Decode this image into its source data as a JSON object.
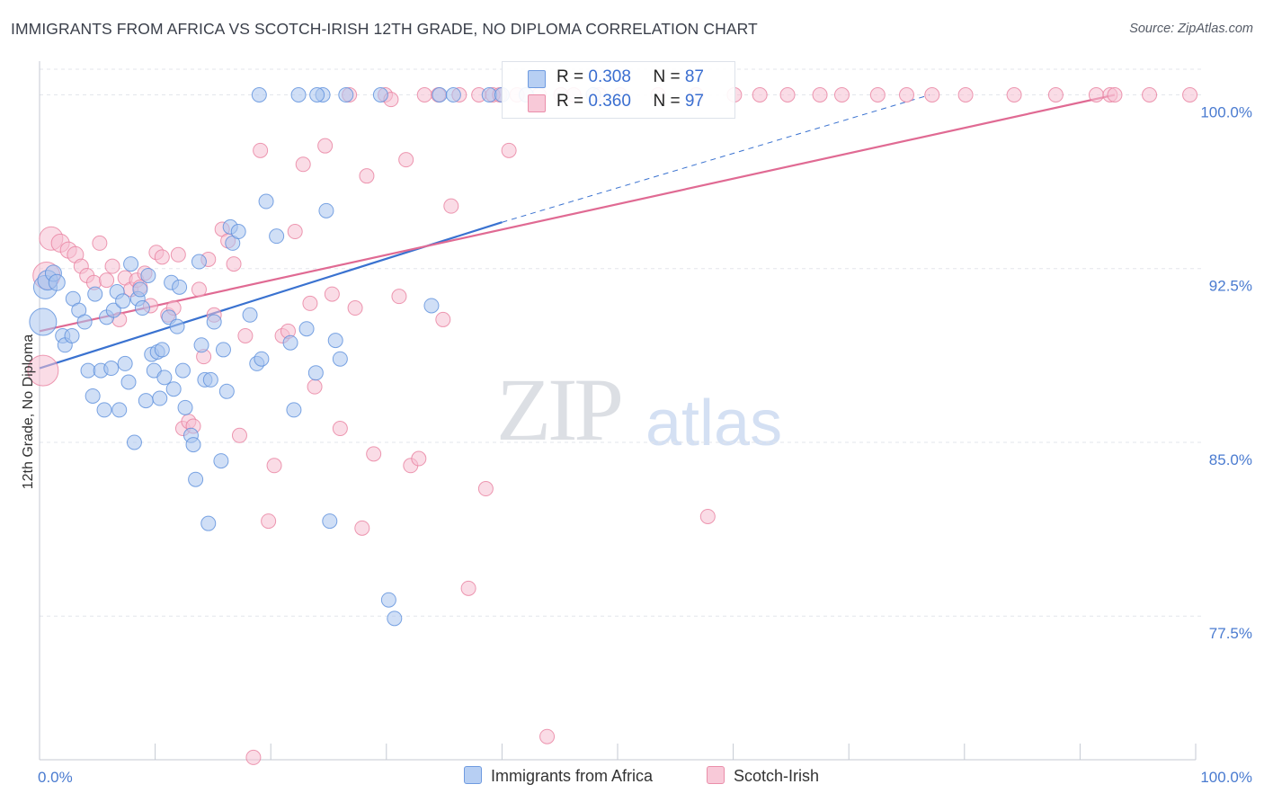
{
  "title": "IMMIGRANTS FROM AFRICA VS SCOTCH-IRISH 12TH GRADE, NO DIPLOMA CORRELATION CHART",
  "source": "Source: ZipAtlas.com",
  "watermark": {
    "zip": "ZIP",
    "atlas": "atlas"
  },
  "legend": {
    "series1": {
      "r_label": "R = ",
      "r_value": "0.308",
      "n_label": "N = ",
      "n_value": "87"
    },
    "series2": {
      "r_label": "R = ",
      "r_value": "0.360",
      "n_label": "N = ",
      "n_value": "97"
    }
  },
  "bottom_legend": {
    "series1": "Immigrants from Africa",
    "series2": "Scotch-Irish"
  },
  "colors": {
    "series1_fill": "#a9c4ee",
    "series1_stroke": "#5b8fdc",
    "series1_line": "#3a72d0",
    "series2_fill": "#f6bfd1",
    "series2_stroke": "#e8809f",
    "series2_line": "#e06a93",
    "grid": "#e3e6eb",
    "axis": "#c5cad3"
  },
  "chart_data": {
    "type": "scatter",
    "title": "IMMIGRANTS FROM AFRICA VS SCOTCH-IRISH 12TH GRADE, NO DIPLOMA CORRELATION CHART",
    "xlabel": "",
    "ylabel": "12th Grade, No Diploma",
    "xlim": [
      0,
      100
    ],
    "ylim": [
      71.3,
      101.3
    ],
    "x_ticks": [
      "0.0%",
      "100.0%"
    ],
    "y_ticks": [
      {
        "value": 77.5,
        "label": "77.5%"
      },
      {
        "value": 85.0,
        "label": "85.0%"
      },
      {
        "value": 92.5,
        "label": "92.5%"
      },
      {
        "value": 100.0,
        "label": "100.0%"
      }
    ],
    "grid": true,
    "legend_position": "top-center",
    "series": [
      {
        "name": "Immigrants from Africa",
        "r": 0.308,
        "n": 87,
        "trend": {
          "x0": 0,
          "y0": 88.2,
          "x1": 40,
          "y1": 94.5,
          "dashed_to_x": 77,
          "dashed_to_y": 100.0
        },
        "points": [
          [
            0.3,
            90.2,
            14
          ],
          [
            0.5,
            91.7,
            12
          ],
          [
            0.7,
            92.0,
            10
          ],
          [
            1.2,
            92.3,
            8
          ],
          [
            1.5,
            91.9,
            8
          ],
          [
            2.0,
            89.6,
            7
          ],
          [
            2.2,
            89.2,
            7
          ],
          [
            2.8,
            89.6,
            7
          ],
          [
            2.9,
            91.2,
            7
          ],
          [
            3.4,
            90.7,
            7
          ],
          [
            3.9,
            90.2,
            7
          ],
          [
            4.2,
            88.1,
            7
          ],
          [
            4.6,
            87.0,
            7
          ],
          [
            4.8,
            91.4,
            7
          ],
          [
            5.3,
            88.1,
            7
          ],
          [
            5.6,
            86.4,
            7
          ],
          [
            5.8,
            90.4,
            7
          ],
          [
            6.2,
            88.2,
            7
          ],
          [
            6.4,
            90.7,
            7
          ],
          [
            6.7,
            91.5,
            7
          ],
          [
            6.9,
            86.4,
            7
          ],
          [
            7.2,
            91.1,
            7
          ],
          [
            7.4,
            88.4,
            7
          ],
          [
            7.7,
            87.6,
            7
          ],
          [
            7.9,
            92.7,
            7
          ],
          [
            8.2,
            85.0,
            7
          ],
          [
            8.5,
            91.2,
            7
          ],
          [
            8.7,
            91.6,
            7
          ],
          [
            8.9,
            90.8,
            7
          ],
          [
            9.2,
            86.8,
            7
          ],
          [
            9.4,
            92.2,
            7
          ],
          [
            9.7,
            88.8,
            7
          ],
          [
            9.9,
            88.1,
            7
          ],
          [
            10.2,
            88.9,
            7
          ],
          [
            10.4,
            86.9,
            7
          ],
          [
            10.6,
            89.0,
            7
          ],
          [
            10.8,
            87.8,
            7
          ],
          [
            11.2,
            90.4,
            7
          ],
          [
            11.4,
            91.9,
            7
          ],
          [
            11.6,
            87.3,
            7
          ],
          [
            11.9,
            90.0,
            7
          ],
          [
            12.1,
            91.7,
            7
          ],
          [
            12.4,
            88.1,
            7
          ],
          [
            12.6,
            86.5,
            7
          ],
          [
            13.1,
            85.3,
            7
          ],
          [
            13.3,
            84.9,
            7
          ],
          [
            13.5,
            83.4,
            7
          ],
          [
            13.8,
            92.8,
            7
          ],
          [
            14.0,
            89.2,
            7
          ],
          [
            14.3,
            87.7,
            7
          ],
          [
            14.6,
            81.5,
            7
          ],
          [
            14.8,
            87.7,
            7
          ],
          [
            15.1,
            90.2,
            7
          ],
          [
            15.7,
            84.2,
            7
          ],
          [
            15.9,
            89.0,
            7
          ],
          [
            16.2,
            87.2,
            7
          ],
          [
            16.5,
            94.3,
            7
          ],
          [
            16.7,
            93.6,
            7
          ],
          [
            17.2,
            94.1,
            7
          ],
          [
            18.2,
            90.5,
            7
          ],
          [
            18.8,
            88.4,
            7
          ],
          [
            19.2,
            88.6,
            7
          ],
          [
            19.6,
            95.4,
            7
          ],
          [
            20.5,
            93.9,
            7
          ],
          [
            22.0,
            86.4,
            7
          ],
          [
            22.4,
            100.0,
            7
          ],
          [
            24.5,
            100.0,
            7
          ],
          [
            23.1,
            89.9,
            7
          ],
          [
            23.9,
            88.0,
            7
          ],
          [
            24.8,
            95.0,
            7
          ],
          [
            25.1,
            81.6,
            7
          ],
          [
            25.6,
            89.4,
            7
          ],
          [
            26.0,
            88.6,
            7
          ],
          [
            26.5,
            100.0,
            7
          ],
          [
            29.5,
            100.0,
            7
          ],
          [
            30.2,
            78.2,
            7
          ],
          [
            30.7,
            77.4,
            7
          ],
          [
            34.6,
            100.0,
            7
          ],
          [
            33.9,
            90.9,
            7
          ],
          [
            35.8,
            100.0,
            7
          ],
          [
            38.9,
            100.0,
            7
          ],
          [
            40.0,
            100.0,
            7
          ],
          [
            42.1,
            100.0,
            7
          ],
          [
            47.9,
            100.0,
            7
          ],
          [
            19.0,
            100.0,
            7
          ],
          [
            21.7,
            89.3,
            7
          ],
          [
            24.0,
            100.0,
            7
          ]
        ]
      },
      {
        "name": "Scotch-Irish",
        "r": 0.36,
        "n": 97,
        "trend": {
          "x0": 0,
          "y0": 89.8,
          "x1": 93,
          "y1": 100.0
        },
        "points": [
          [
            0.3,
            88.1,
            16
          ],
          [
            0.6,
            92.2,
            14
          ],
          [
            1.0,
            93.8,
            12
          ],
          [
            1.8,
            93.6,
            9
          ],
          [
            2.5,
            93.3,
            8
          ],
          [
            3.1,
            93.1,
            8
          ],
          [
            3.6,
            92.6,
            7
          ],
          [
            4.1,
            92.2,
            7
          ],
          [
            4.7,
            91.9,
            7
          ],
          [
            5.2,
            93.6,
            7
          ],
          [
            5.8,
            92.0,
            7
          ],
          [
            6.3,
            92.6,
            7
          ],
          [
            6.9,
            90.3,
            7
          ],
          [
            7.4,
            92.1,
            7
          ],
          [
            7.9,
            91.6,
            7
          ],
          [
            8.4,
            92.0,
            7
          ],
          [
            8.7,
            91.7,
            7
          ],
          [
            9.1,
            92.3,
            7
          ],
          [
            9.6,
            90.9,
            7
          ],
          [
            10.1,
            93.2,
            7
          ],
          [
            10.6,
            93.0,
            7
          ],
          [
            11.1,
            90.5,
            7
          ],
          [
            11.6,
            90.8,
            7
          ],
          [
            12.0,
            93.1,
            7
          ],
          [
            12.4,
            85.6,
            7
          ],
          [
            12.9,
            85.9,
            7
          ],
          [
            13.3,
            85.7,
            7
          ],
          [
            13.8,
            91.6,
            7
          ],
          [
            14.2,
            88.7,
            7
          ],
          [
            14.6,
            92.9,
            7
          ],
          [
            15.1,
            90.5,
            7
          ],
          [
            15.8,
            94.2,
            7
          ],
          [
            16.3,
            93.7,
            7
          ],
          [
            16.8,
            92.7,
            7
          ],
          [
            17.3,
            85.3,
            7
          ],
          [
            17.8,
            89.6,
            7
          ],
          [
            18.5,
            71.4,
            7
          ],
          [
            19.1,
            97.6,
            7
          ],
          [
            19.8,
            81.6,
            7
          ],
          [
            20.3,
            84.0,
            7
          ],
          [
            21.0,
            89.6,
            7
          ],
          [
            21.5,
            89.8,
            7
          ],
          [
            22.1,
            94.1,
            7
          ],
          [
            22.8,
            97.0,
            7
          ],
          [
            23.4,
            91.0,
            7
          ],
          [
            23.8,
            87.4,
            7
          ],
          [
            24.7,
            97.8,
            7
          ],
          [
            25.3,
            91.4,
            7
          ],
          [
            26.0,
            85.6,
            7
          ],
          [
            26.8,
            100.0,
            7
          ],
          [
            27.3,
            90.8,
            7
          ],
          [
            27.9,
            81.3,
            7
          ],
          [
            28.3,
            96.5,
            7
          ],
          [
            28.9,
            84.5,
            7
          ],
          [
            29.9,
            100.0,
            7
          ],
          [
            30.4,
            99.8,
            7
          ],
          [
            31.1,
            91.3,
            7
          ],
          [
            31.7,
            97.2,
            7
          ],
          [
            32.1,
            84.0,
            7
          ],
          [
            32.8,
            84.3,
            7
          ],
          [
            33.3,
            100.0,
            7
          ],
          [
            34.5,
            100.0,
            7
          ],
          [
            34.9,
            90.3,
            7
          ],
          [
            35.6,
            95.2,
            7
          ],
          [
            36.3,
            100.0,
            7
          ],
          [
            37.1,
            78.7,
            7
          ],
          [
            38.0,
            100.0,
            7
          ],
          [
            38.6,
            83.0,
            7
          ],
          [
            39.2,
            100.0,
            7
          ],
          [
            39.8,
            100.0,
            7
          ],
          [
            40.6,
            97.6,
            7
          ],
          [
            41.3,
            100.0,
            7
          ],
          [
            43.2,
            100.0,
            7
          ],
          [
            43.9,
            72.3,
            7
          ],
          [
            45.1,
            100.0,
            7
          ],
          [
            46.2,
            100.0,
            7
          ],
          [
            48.4,
            100.0,
            7
          ],
          [
            50.2,
            100.0,
            7
          ],
          [
            53.5,
            100.0,
            7
          ],
          [
            56.8,
            100.0,
            7
          ],
          [
            60.1,
            100.0,
            7
          ],
          [
            62.3,
            100.0,
            7
          ],
          [
            64.7,
            100.0,
            7
          ],
          [
            67.5,
            100.0,
            7
          ],
          [
            69.4,
            100.0,
            7
          ],
          [
            72.5,
            100.0,
            7
          ],
          [
            75.0,
            100.0,
            7
          ],
          [
            77.2,
            100.0,
            7
          ],
          [
            80.1,
            100.0,
            7
          ],
          [
            84.3,
            100.0,
            7
          ],
          [
            87.9,
            100.0,
            7
          ],
          [
            91.4,
            100.0,
            7
          ],
          [
            92.6,
            100.0,
            7
          ],
          [
            93.0,
            100.0,
            7
          ],
          [
            96.0,
            100.0,
            7
          ],
          [
            99.5,
            100.0,
            7
          ],
          [
            57.8,
            81.8,
            7
          ]
        ]
      }
    ]
  }
}
